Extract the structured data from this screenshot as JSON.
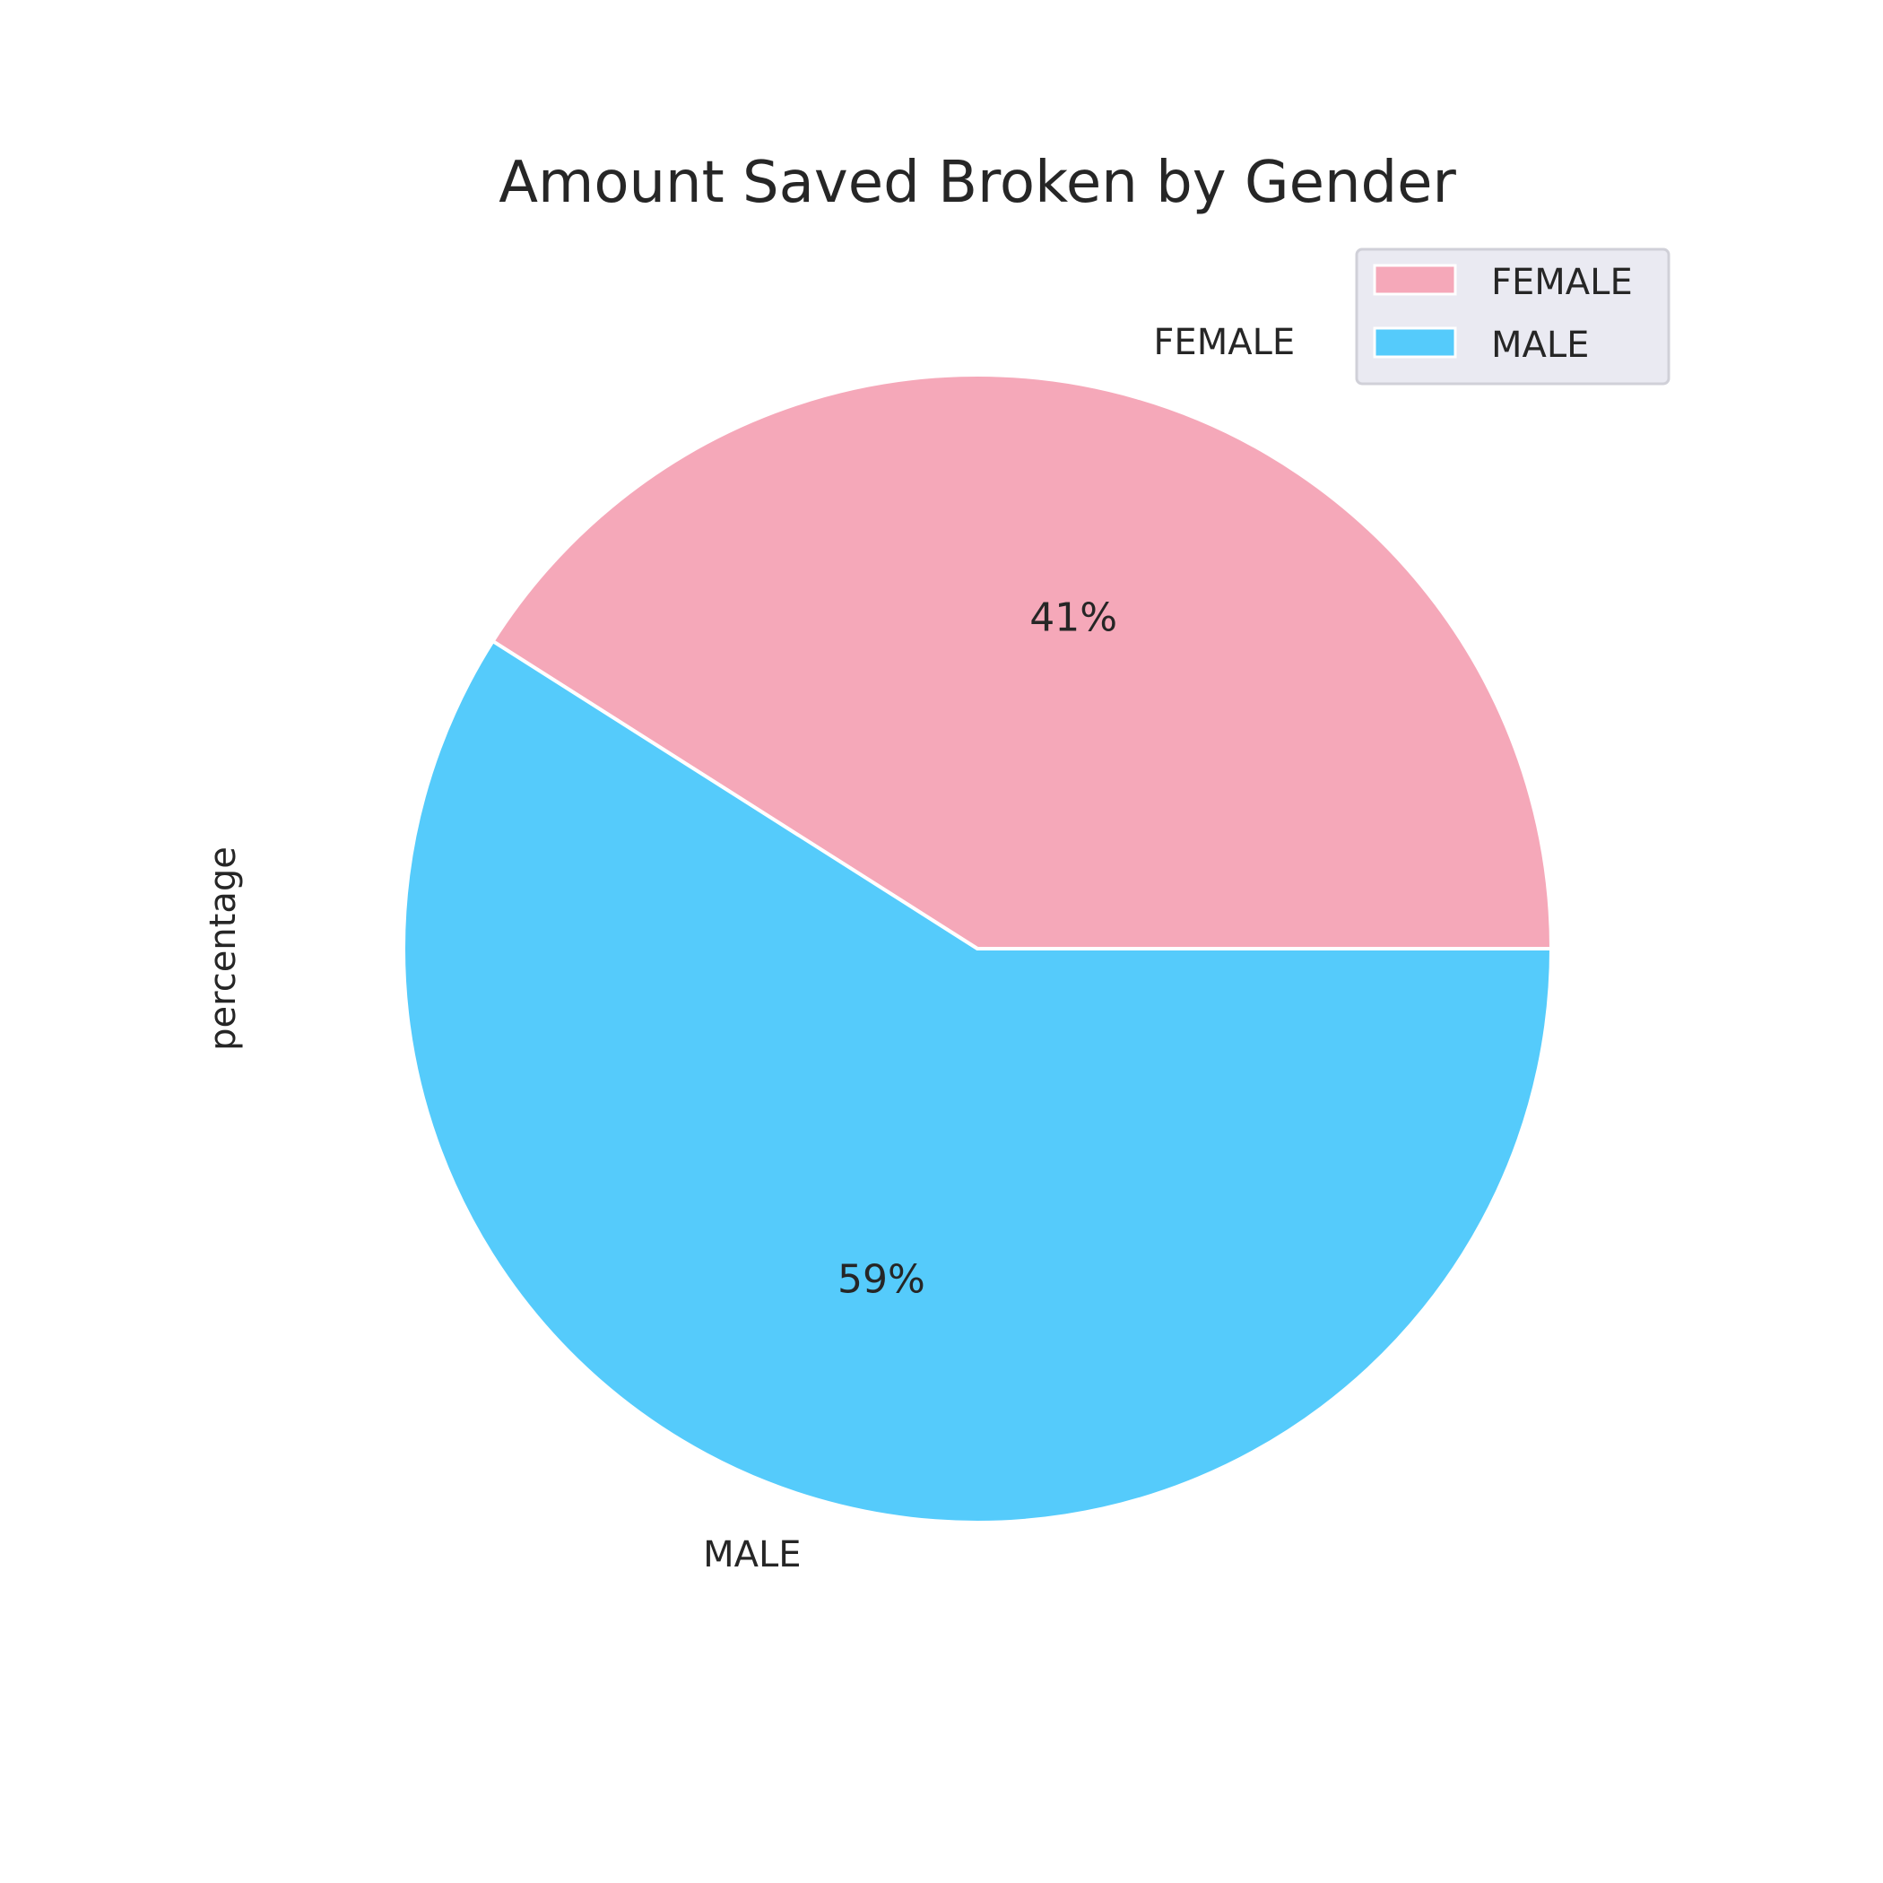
{
  "chart_data": {
    "type": "pie",
    "title": "Amount Saved Broken by Gender",
    "ylabel": "percentage",
    "categories": [
      "FEMALE",
      "MALE"
    ],
    "values": [
      41,
      59
    ],
    "percent_labels": [
      "41%",
      "59%"
    ],
    "colors": [
      "#F5A8B9",
      "#55CBFB"
    ],
    "start_angle_deg": 0,
    "direction": "counterclockwise",
    "legend": {
      "placement": "top-right",
      "entries": [
        "FEMALE",
        "MALE"
      ]
    }
  }
}
